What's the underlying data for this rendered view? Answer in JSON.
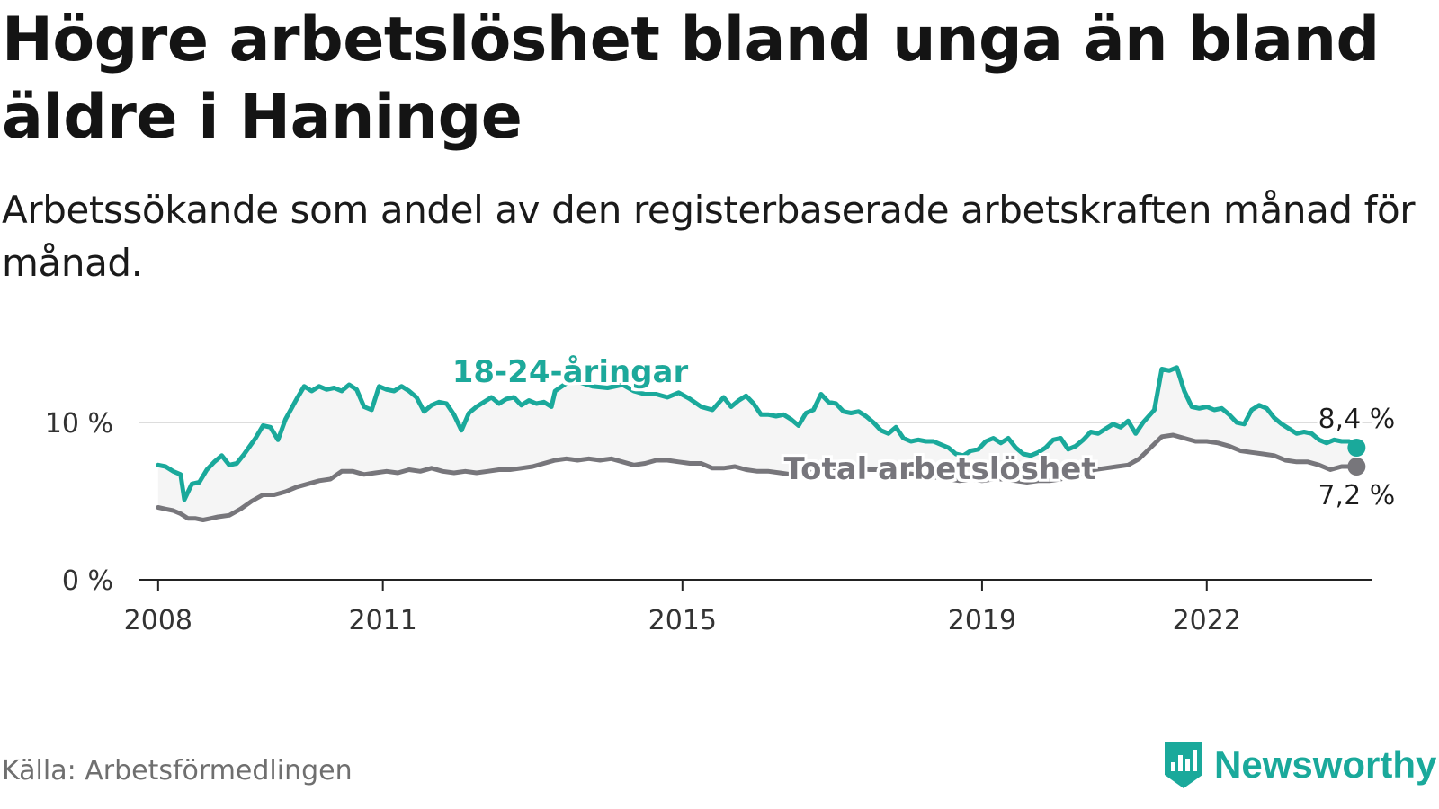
{
  "title": "Högre arbetslöshet bland unga än bland äldre i Haninge",
  "subtitle": "Arbetssökande som andel av den registerbaserade arbetskraften månad för månad.",
  "source": "Källa: Arbetsförmedlingen",
  "brand": {
    "name": "Newsworthy",
    "icon": "newsworthy-logo-icon",
    "color": "#1aa99b"
  },
  "colors": {
    "youth": "#1aa99b",
    "total": "#77767b",
    "band": "#f5f5f5",
    "grid": "#dddddd",
    "axis": "#222222"
  },
  "chart_data": {
    "type": "line",
    "x_unit": "year",
    "xlim": [
      2007.75,
      2024.2
    ],
    "ylim": [
      0,
      14
    ],
    "y_ticks": [
      {
        "value": 0,
        "label": "0 %"
      },
      {
        "value": 10,
        "label": "10 %"
      }
    ],
    "x_ticks": [
      {
        "value": 2008,
        "label": "2008"
      },
      {
        "value": 2011,
        "label": "2011"
      },
      {
        "value": 2015,
        "label": "2015"
      },
      {
        "value": 2019,
        "label": "2019"
      },
      {
        "value": 2022,
        "label": "2022"
      }
    ],
    "grid": "horizontal",
    "series": [
      {
        "name": "18-24-åringar",
        "label": "18-24-åringar",
        "end_label": "8,4 %",
        "color": "#1aa99b",
        "points": [
          [
            2008.0,
            7.3
          ],
          [
            2008.1,
            7.2
          ],
          [
            2008.2,
            6.9
          ],
          [
            2008.3,
            6.7
          ],
          [
            2008.35,
            5.1
          ],
          [
            2008.45,
            6.1
          ],
          [
            2008.55,
            6.2
          ],
          [
            2008.65,
            7.0
          ],
          [
            2008.75,
            7.5
          ],
          [
            2008.85,
            7.9
          ],
          [
            2008.95,
            7.3
          ],
          [
            2009.05,
            7.4
          ],
          [
            2009.15,
            8.0
          ],
          [
            2009.3,
            9.0
          ],
          [
            2009.4,
            9.8
          ],
          [
            2009.5,
            9.7
          ],
          [
            2009.6,
            8.9
          ],
          [
            2009.7,
            10.2
          ],
          [
            2009.85,
            11.5
          ],
          [
            2009.95,
            12.3
          ],
          [
            2010.05,
            12.0
          ],
          [
            2010.15,
            12.3
          ],
          [
            2010.25,
            12.1
          ],
          [
            2010.35,
            12.2
          ],
          [
            2010.45,
            12.0
          ],
          [
            2010.55,
            12.4
          ],
          [
            2010.65,
            12.1
          ],
          [
            2010.75,
            11.0
          ],
          [
            2010.85,
            10.8
          ],
          [
            2010.95,
            12.3
          ],
          [
            2011.05,
            12.1
          ],
          [
            2011.15,
            12.0
          ],
          [
            2011.25,
            12.3
          ],
          [
            2011.35,
            12.0
          ],
          [
            2011.45,
            11.6
          ],
          [
            2011.55,
            10.7
          ],
          [
            2011.65,
            11.1
          ],
          [
            2011.75,
            11.3
          ],
          [
            2011.85,
            11.2
          ],
          [
            2011.95,
            10.5
          ],
          [
            2012.05,
            9.5
          ],
          [
            2012.15,
            10.6
          ],
          [
            2012.25,
            11.0
          ],
          [
            2012.35,
            11.3
          ],
          [
            2012.45,
            11.6
          ],
          [
            2012.55,
            11.2
          ],
          [
            2012.65,
            11.5
          ],
          [
            2012.75,
            11.6
          ],
          [
            2012.85,
            11.1
          ],
          [
            2012.95,
            11.4
          ],
          [
            2013.05,
            11.2
          ],
          [
            2013.15,
            11.3
          ],
          [
            2013.25,
            11.0
          ],
          [
            2013.3,
            12.0
          ],
          [
            2013.45,
            12.5
          ],
          [
            2013.6,
            12.6
          ],
          [
            2013.8,
            12.3
          ],
          [
            2014.0,
            12.2
          ],
          [
            2014.2,
            12.4
          ],
          [
            2014.35,
            12.0
          ],
          [
            2014.5,
            11.8
          ],
          [
            2014.65,
            11.8
          ],
          [
            2014.8,
            11.6
          ],
          [
            2014.95,
            11.9
          ],
          [
            2015.1,
            11.5
          ],
          [
            2015.25,
            11.0
          ],
          [
            2015.4,
            10.8
          ],
          [
            2015.55,
            11.6
          ],
          [
            2015.65,
            11.0
          ],
          [
            2015.75,
            11.4
          ],
          [
            2015.85,
            11.7
          ],
          [
            2015.95,
            11.2
          ],
          [
            2016.05,
            10.5
          ],
          [
            2016.15,
            10.5
          ],
          [
            2016.25,
            10.4
          ],
          [
            2016.35,
            10.5
          ],
          [
            2016.45,
            10.2
          ],
          [
            2016.55,
            9.8
          ],
          [
            2016.65,
            10.6
          ],
          [
            2016.75,
            10.8
          ],
          [
            2016.85,
            11.8
          ],
          [
            2016.95,
            11.3
          ],
          [
            2017.05,
            11.2
          ],
          [
            2017.15,
            10.7
          ],
          [
            2017.25,
            10.6
          ],
          [
            2017.35,
            10.7
          ],
          [
            2017.45,
            10.4
          ],
          [
            2017.55,
            10.0
          ],
          [
            2017.65,
            9.5
          ],
          [
            2017.75,
            9.3
          ],
          [
            2017.85,
            9.7
          ],
          [
            2017.95,
            9.0
          ],
          [
            2018.05,
            8.8
          ],
          [
            2018.15,
            8.9
          ],
          [
            2018.25,
            8.8
          ],
          [
            2018.35,
            8.8
          ],
          [
            2018.45,
            8.6
          ],
          [
            2018.55,
            8.4
          ],
          [
            2018.65,
            8.0
          ],
          [
            2018.75,
            7.9
          ],
          [
            2018.85,
            8.2
          ],
          [
            2018.95,
            8.3
          ],
          [
            2019.05,
            8.8
          ],
          [
            2019.15,
            9.0
          ],
          [
            2019.25,
            8.7
          ],
          [
            2019.35,
            9.0
          ],
          [
            2019.45,
            8.4
          ],
          [
            2019.55,
            8.0
          ],
          [
            2019.65,
            7.9
          ],
          [
            2019.75,
            8.1
          ],
          [
            2019.85,
            8.4
          ],
          [
            2019.95,
            8.9
          ],
          [
            2020.05,
            9.0
          ],
          [
            2020.15,
            8.3
          ],
          [
            2020.25,
            8.5
          ],
          [
            2020.35,
            8.9
          ],
          [
            2020.45,
            9.4
          ],
          [
            2020.55,
            9.3
          ],
          [
            2020.65,
            9.6
          ],
          [
            2020.75,
            9.9
          ],
          [
            2020.85,
            9.7
          ],
          [
            2020.95,
            10.1
          ],
          [
            2021.05,
            9.3
          ],
          [
            2021.15,
            10.0
          ],
          [
            2021.3,
            10.8
          ],
          [
            2021.4,
            13.4
          ],
          [
            2021.5,
            13.3
          ],
          [
            2021.6,
            13.5
          ],
          [
            2021.7,
            12.0
          ],
          [
            2021.8,
            11.0
          ],
          [
            2021.9,
            10.9
          ],
          [
            2022.0,
            11.0
          ],
          [
            2022.1,
            10.8
          ],
          [
            2022.2,
            10.9
          ],
          [
            2022.3,
            10.5
          ],
          [
            2022.4,
            10.0
          ],
          [
            2022.5,
            9.9
          ],
          [
            2022.6,
            10.8
          ],
          [
            2022.7,
            11.1
          ],
          [
            2022.8,
            10.9
          ],
          [
            2022.9,
            10.3
          ],
          [
            2023.0,
            9.9
          ],
          [
            2023.1,
            9.6
          ],
          [
            2023.2,
            9.3
          ],
          [
            2023.3,
            9.4
          ],
          [
            2023.4,
            9.3
          ],
          [
            2023.5,
            8.9
          ],
          [
            2023.6,
            8.7
          ],
          [
            2023.7,
            8.9
          ],
          [
            2023.8,
            8.8
          ],
          [
            2023.9,
            8.8
          ],
          [
            2024.0,
            8.4
          ]
        ]
      },
      {
        "name": "Total arbetslöshet",
        "label": "Total arbetslöshet",
        "end_label": "7,2 %",
        "color": "#77767b",
        "points": [
          [
            2008.0,
            4.6
          ],
          [
            2008.1,
            4.5
          ],
          [
            2008.2,
            4.4
          ],
          [
            2008.3,
            4.2
          ],
          [
            2008.4,
            3.9
          ],
          [
            2008.5,
            3.9
          ],
          [
            2008.6,
            3.8
          ],
          [
            2008.7,
            3.9
          ],
          [
            2008.8,
            4.0
          ],
          [
            2008.95,
            4.1
          ],
          [
            2009.1,
            4.5
          ],
          [
            2009.25,
            5.0
          ],
          [
            2009.4,
            5.4
          ],
          [
            2009.55,
            5.4
          ],
          [
            2009.7,
            5.6
          ],
          [
            2009.85,
            5.9
          ],
          [
            2010.0,
            6.1
          ],
          [
            2010.15,
            6.3
          ],
          [
            2010.3,
            6.4
          ],
          [
            2010.45,
            6.9
          ],
          [
            2010.6,
            6.9
          ],
          [
            2010.75,
            6.7
          ],
          [
            2010.9,
            6.8
          ],
          [
            2011.05,
            6.9
          ],
          [
            2011.2,
            6.8
          ],
          [
            2011.35,
            7.0
          ],
          [
            2011.5,
            6.9
          ],
          [
            2011.65,
            7.1
          ],
          [
            2011.8,
            6.9
          ],
          [
            2011.95,
            6.8
          ],
          [
            2012.1,
            6.9
          ],
          [
            2012.25,
            6.8
          ],
          [
            2012.4,
            6.9
          ],
          [
            2012.55,
            7.0
          ],
          [
            2012.7,
            7.0
          ],
          [
            2012.85,
            7.1
          ],
          [
            2013.0,
            7.2
          ],
          [
            2013.15,
            7.4
          ],
          [
            2013.3,
            7.6
          ],
          [
            2013.45,
            7.7
          ],
          [
            2013.6,
            7.6
          ],
          [
            2013.75,
            7.7
          ],
          [
            2013.9,
            7.6
          ],
          [
            2014.05,
            7.7
          ],
          [
            2014.2,
            7.5
          ],
          [
            2014.35,
            7.3
          ],
          [
            2014.5,
            7.4
          ],
          [
            2014.65,
            7.6
          ],
          [
            2014.8,
            7.6
          ],
          [
            2014.95,
            7.5
          ],
          [
            2015.1,
            7.4
          ],
          [
            2015.25,
            7.4
          ],
          [
            2015.4,
            7.1
          ],
          [
            2015.55,
            7.1
          ],
          [
            2015.7,
            7.2
          ],
          [
            2015.85,
            7.0
          ],
          [
            2016.0,
            6.9
          ],
          [
            2016.15,
            6.9
          ],
          [
            2016.3,
            6.8
          ],
          [
            2016.45,
            6.7
          ],
          [
            2016.6,
            6.8
          ],
          [
            2016.75,
            7.0
          ],
          [
            2016.9,
            7.2
          ],
          [
            2017.05,
            7.1
          ],
          [
            2017.2,
            7.2
          ],
          [
            2017.35,
            7.1
          ],
          [
            2017.5,
            7.0
          ],
          [
            2017.65,
            7.0
          ],
          [
            2017.8,
            6.9
          ],
          [
            2017.95,
            6.8
          ],
          [
            2018.1,
            6.7
          ],
          [
            2018.25,
            6.6
          ],
          [
            2018.4,
            6.5
          ],
          [
            2018.55,
            6.4
          ],
          [
            2018.7,
            6.3
          ],
          [
            2018.85,
            6.4
          ],
          [
            2019.0,
            6.3
          ],
          [
            2019.15,
            6.4
          ],
          [
            2019.3,
            6.4
          ],
          [
            2019.45,
            6.3
          ],
          [
            2019.6,
            6.2
          ],
          [
            2019.75,
            6.3
          ],
          [
            2019.9,
            6.3
          ],
          [
            2020.05,
            6.4
          ],
          [
            2020.2,
            6.6
          ],
          [
            2020.35,
            6.8
          ],
          [
            2020.5,
            7.0
          ],
          [
            2020.65,
            7.1
          ],
          [
            2020.8,
            7.2
          ],
          [
            2020.95,
            7.3
          ],
          [
            2021.1,
            7.7
          ],
          [
            2021.25,
            8.4
          ],
          [
            2021.4,
            9.1
          ],
          [
            2021.55,
            9.2
          ],
          [
            2021.7,
            9.0
          ],
          [
            2021.85,
            8.8
          ],
          [
            2022.0,
            8.8
          ],
          [
            2022.15,
            8.7
          ],
          [
            2022.3,
            8.5
          ],
          [
            2022.45,
            8.2
          ],
          [
            2022.6,
            8.1
          ],
          [
            2022.75,
            8.0
          ],
          [
            2022.9,
            7.9
          ],
          [
            2023.05,
            7.6
          ],
          [
            2023.2,
            7.5
          ],
          [
            2023.35,
            7.5
          ],
          [
            2023.5,
            7.3
          ],
          [
            2023.65,
            7.0
          ],
          [
            2023.8,
            7.2
          ],
          [
            2024.0,
            7.2
          ]
        ]
      }
    ]
  }
}
